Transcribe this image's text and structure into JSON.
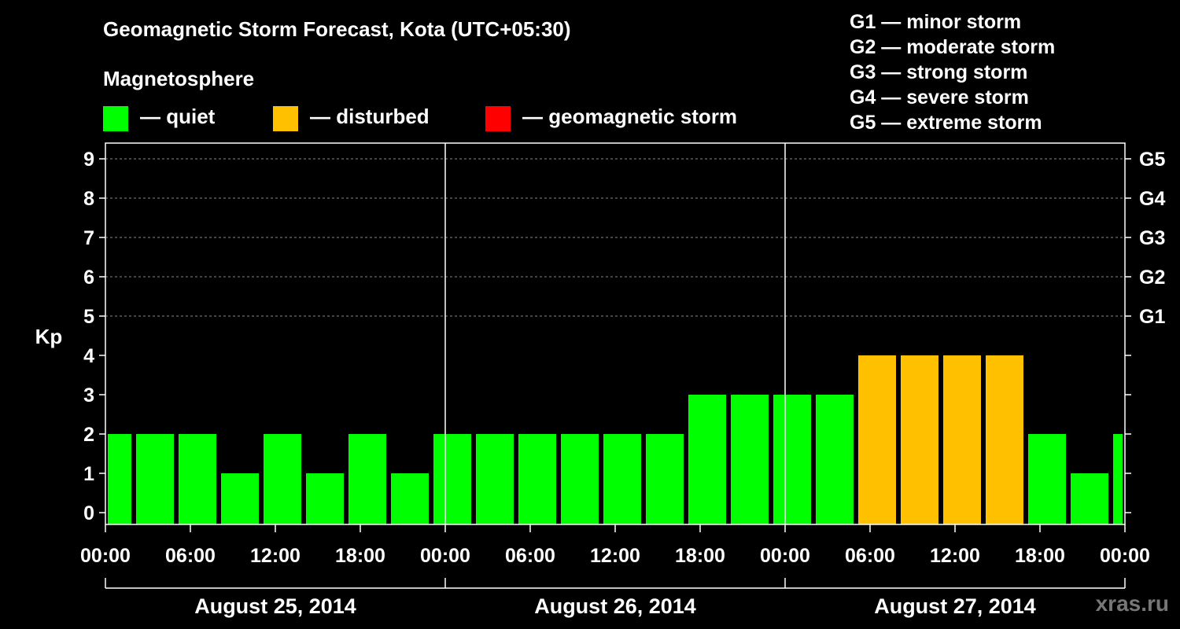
{
  "header": {
    "title": "Geomagnetic Storm Forecast, Kota (UTC+05:30)",
    "legend_title": "Magnetosphere",
    "legend": [
      {
        "label": "— quiet",
        "color": "#00ff00"
      },
      {
        "label": "— disturbed",
        "color": "#ffc000"
      },
      {
        "label": "— geomagnetic storm",
        "color": "#ff0000"
      }
    ],
    "storm_scale": [
      "G1 — minor storm",
      "G2 — moderate storm",
      "G3 — strong storm",
      "G4 — severe storm",
      "G5 — extreme storm"
    ]
  },
  "watermark": "xras.ru",
  "chart_data": {
    "type": "bar",
    "ylabel": "Kp",
    "ylim": [
      0,
      9
    ],
    "y_ticks": [
      "0",
      "1",
      "2",
      "3",
      "4",
      "5",
      "6",
      "7",
      "8",
      "9"
    ],
    "right_ticks": [
      {
        "kp": 5,
        "label": "G1"
      },
      {
        "kp": 6,
        "label": "G2"
      },
      {
        "kp": 7,
        "label": "G3"
      },
      {
        "kp": 8,
        "label": "G4"
      },
      {
        "kp": 9,
        "label": "G5"
      }
    ],
    "x_range_hours": [
      0,
      72
    ],
    "x_ticks": [
      "00:00",
      "06:00",
      "12:00",
      "18:00",
      "00:00",
      "06:00",
      "12:00",
      "18:00",
      "00:00",
      "06:00",
      "12:00",
      "18:00",
      "00:00"
    ],
    "dates": [
      "August 25, 2014",
      "August 26, 2014",
      "August 27, 2014"
    ],
    "colors": {
      "quiet": "#00ff00",
      "disturbed": "#ffc000",
      "storm": "#ff0000"
    },
    "bars": [
      {
        "start": "2014-08-25 00:00",
        "end": "2014-08-25 02:00",
        "kp": 2
      },
      {
        "start": "2014-08-25 02:00",
        "end": "2014-08-25 05:00",
        "kp": 2
      },
      {
        "start": "2014-08-25 05:00",
        "end": "2014-08-25 08:00",
        "kp": 2
      },
      {
        "start": "2014-08-25 08:00",
        "end": "2014-08-25 11:00",
        "kp": 1
      },
      {
        "start": "2014-08-25 11:00",
        "end": "2014-08-25 14:00",
        "kp": 2
      },
      {
        "start": "2014-08-25 14:00",
        "end": "2014-08-25 17:00",
        "kp": 1
      },
      {
        "start": "2014-08-25 17:00",
        "end": "2014-08-25 20:00",
        "kp": 2
      },
      {
        "start": "2014-08-25 20:00",
        "end": "2014-08-25 23:00",
        "kp": 1
      },
      {
        "start": "2014-08-25 23:00",
        "end": "2014-08-26 02:00",
        "kp": 2
      },
      {
        "start": "2014-08-26 02:00",
        "end": "2014-08-26 05:00",
        "kp": 2
      },
      {
        "start": "2014-08-26 05:00",
        "end": "2014-08-26 08:00",
        "kp": 2
      },
      {
        "start": "2014-08-26 08:00",
        "end": "2014-08-26 11:00",
        "kp": 2
      },
      {
        "start": "2014-08-26 11:00",
        "end": "2014-08-26 14:00",
        "kp": 2
      },
      {
        "start": "2014-08-26 14:00",
        "end": "2014-08-26 17:00",
        "kp": 2
      },
      {
        "start": "2014-08-26 17:00",
        "end": "2014-08-26 20:00",
        "kp": 3
      },
      {
        "start": "2014-08-26 20:00",
        "end": "2014-08-26 23:00",
        "kp": 3
      },
      {
        "start": "2014-08-26 23:00",
        "end": "2014-08-27 02:00",
        "kp": 3
      },
      {
        "start": "2014-08-27 02:00",
        "end": "2014-08-27 05:00",
        "kp": 3
      },
      {
        "start": "2014-08-27 05:00",
        "end": "2014-08-27 08:00",
        "kp": 4
      },
      {
        "start": "2014-08-27 08:00",
        "end": "2014-08-27 11:00",
        "kp": 4
      },
      {
        "start": "2014-08-27 11:00",
        "end": "2014-08-27 14:00",
        "kp": 4
      },
      {
        "start": "2014-08-27 14:00",
        "end": "2014-08-27 17:00",
        "kp": 4
      },
      {
        "start": "2014-08-27 17:00",
        "end": "2014-08-27 20:00",
        "kp": 2
      },
      {
        "start": "2014-08-27 20:00",
        "end": "2014-08-27 23:00",
        "kp": 1
      },
      {
        "start": "2014-08-27 23:00",
        "end": "2014-08-28 00:00",
        "kp": 2
      }
    ]
  }
}
